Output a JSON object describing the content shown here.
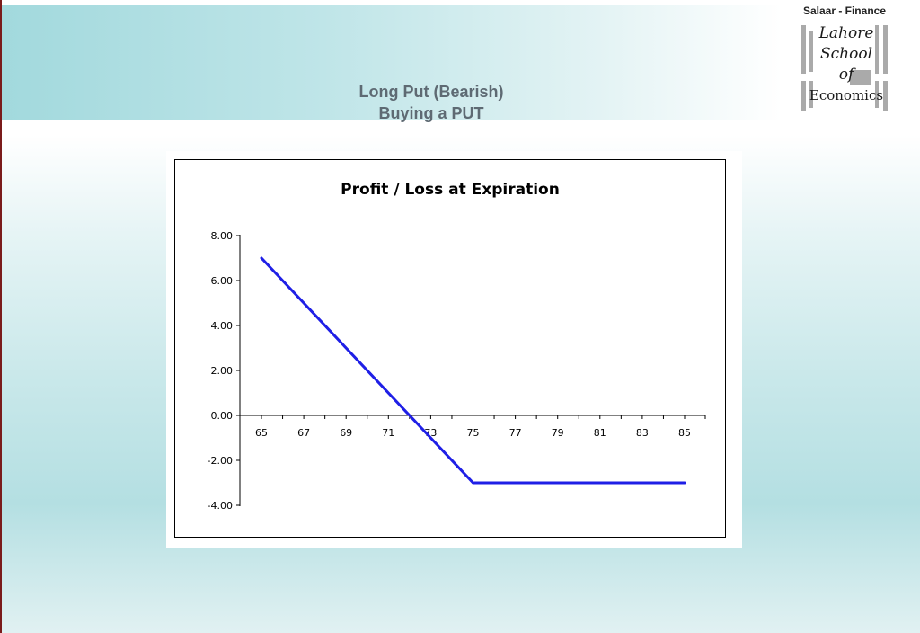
{
  "header": {
    "title_line1": "Long Put (Bearish)",
    "title_line2": "Buying a PUT",
    "brand": "Salaar - Finance",
    "logo_lines": [
      "Lahore",
      "School",
      "of",
      "Economics"
    ]
  },
  "colors": {
    "line": "#1f1fe6",
    "title": "#5e6a73"
  },
  "chart_data": {
    "type": "line",
    "title": "Profit / Loss at Expiration",
    "xlabel": "",
    "ylabel": "",
    "xlim": [
      65,
      85
    ],
    "ylim": [
      -4,
      8
    ],
    "grid": false,
    "x_ticks": [
      "65",
      "67",
      "69",
      "71",
      "73",
      "75",
      "77",
      "79",
      "81",
      "83",
      "85"
    ],
    "y_ticks": [
      "8.00",
      "6.00",
      "4.00",
      "2.00",
      "0.00",
      "-2.00",
      "-4.00"
    ],
    "series": [
      {
        "x": [
          65,
          75,
          85
        ],
        "y": [
          7.0,
          -3.0,
          -3.0
        ]
      }
    ]
  }
}
